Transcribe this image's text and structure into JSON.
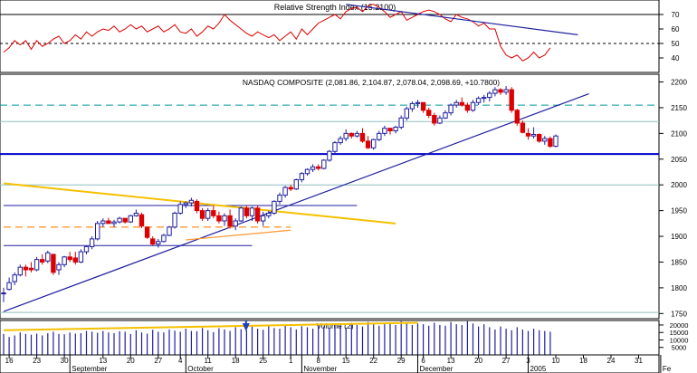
{
  "chart_data": [
    {
      "panel": "rsi",
      "type": "line",
      "title": "Relative Strength Index (15.2100)",
      "y_ticks": [
        40,
        50,
        60,
        70
      ],
      "ylim": [
        30,
        80
      ],
      "grid": false,
      "colors": {
        "rsi": "#dd0000",
        "overbought_line": "#000000",
        "midline": "#000000",
        "trendline": "#1f1f9f"
      },
      "overbought": 70,
      "midline": 50,
      "series": [
        {
          "values": [
            44,
            47,
            52,
            49,
            52,
            46,
            52,
            48,
            50,
            53,
            55,
            50,
            52,
            56,
            53,
            58,
            55,
            58,
            60,
            59,
            62,
            58,
            60,
            63,
            60,
            62,
            58,
            60,
            62,
            58,
            60,
            63,
            58,
            57,
            60,
            55,
            58,
            62,
            60,
            64,
            70,
            66,
            63,
            60,
            57,
            55,
            58,
            56,
            54,
            56,
            52,
            55,
            58,
            53,
            60,
            56,
            60,
            64,
            66,
            68,
            70,
            67,
            72,
            74,
            75,
            72,
            76,
            77,
            75,
            72,
            68,
            70,
            72,
            66,
            68,
            70,
            72,
            73,
            72,
            70,
            67,
            65,
            70,
            68,
            67,
            65,
            62,
            64,
            60,
            60,
            48,
            42,
            40,
            42,
            38,
            40,
            44,
            40,
            42,
            47
          ]
        }
      ],
      "trendline": {
        "from": {
          "index": 62,
          "value": 77
        },
        "to": {
          "index": 104,
          "value": 56
        }
      }
    },
    {
      "panel": "price",
      "type": "candlestick",
      "title": "NASDAQ COMPOSITE (2,081.86, 2,104.87, 2,078.04, 2,098.69, +10.7800)",
      "y_ticks": [
        1750,
        1800,
        1850,
        1900,
        1950,
        2000,
        2050,
        2100,
        2150,
        2200
      ],
      "ylim": [
        1740,
        2215
      ],
      "grid": false,
      "colors": {
        "up": "#1f1f9f",
        "down": "#dd0000",
        "support": "#0000cc",
        "resistance": "#009999",
        "yellow_trendline": "#f5c000",
        "orange_lines": "#ff9933",
        "blue_trendline": "#1f1f9f",
        "gridline": "#8fbfbf"
      },
      "horizontal_lines": [
        {
          "value": 2060,
          "style": "solid-thick"
        },
        {
          "value": 2155,
          "style": "dashed"
        },
        {
          "value": 2123,
          "style": "solid-thin"
        },
        {
          "value": 2000,
          "style": "solid-thin"
        },
        {
          "value": 1752,
          "style": "solid-thin"
        },
        {
          "value": 1960,
          "style": "solid-thin",
          "from_index": 0,
          "to_index": 64
        },
        {
          "value": 1882,
          "style": "solid-thin",
          "from_index": 0,
          "to_index": 45
        }
      ],
      "trendlines": [
        {
          "color": "yellow",
          "from": {
            "index": 0,
            "value": 2003
          },
          "to": {
            "index": 71,
            "value": 1925
          }
        },
        {
          "color": "blue",
          "from": {
            "index": 0,
            "value": 1754
          },
          "to": {
            "index": 106,
            "value": 2177
          }
        },
        {
          "color": "orange",
          "from": {
            "index": 33,
            "value": 1893
          },
          "to": {
            "index": 52,
            "value": 1912
          }
        },
        {
          "color": "orange",
          "from": {
            "index": 0,
            "value": 1918
          },
          "to": {
            "index": 52,
            "value": 1918
          },
          "style": "dashed"
        }
      ],
      "candles": [
        [
          1790,
          1800,
          1772,
          1790
        ],
        [
          1797,
          1820,
          1795,
          1810
        ],
        [
          1812,
          1830,
          1805,
          1825
        ],
        [
          1825,
          1845,
          1822,
          1840
        ],
        [
          1840,
          1845,
          1822,
          1835
        ],
        [
          1838,
          1850,
          1830,
          1835
        ],
        [
          1835,
          1860,
          1832,
          1855
        ],
        [
          1855,
          1865,
          1845,
          1850
        ],
        [
          1852,
          1872,
          1848,
          1868
        ],
        [
          1865,
          1866,
          1825,
          1830
        ],
        [
          1835,
          1850,
          1825,
          1845
        ],
        [
          1845,
          1862,
          1840,
          1860
        ],
        [
          1860,
          1870,
          1850,
          1855
        ],
        [
          1858,
          1870,
          1845,
          1850
        ],
        [
          1850,
          1875,
          1848,
          1870
        ],
        [
          1870,
          1882,
          1865,
          1880
        ],
        [
          1880,
          1900,
          1875,
          1895
        ],
        [
          1895,
          1930,
          1892,
          1925
        ],
        [
          1925,
          1935,
          1918,
          1930
        ],
        [
          1930,
          1936,
          1925,
          1925
        ],
        [
          1925,
          1932,
          1918,
          1928
        ],
        [
          1928,
          1938,
          1925,
          1935
        ],
        [
          1935,
          1935,
          1925,
          1928
        ],
        [
          1928,
          1942,
          1926,
          1940
        ],
        [
          1940,
          1952,
          1938,
          1945
        ],
        [
          1942,
          1946,
          1916,
          1920
        ],
        [
          1918,
          1918,
          1895,
          1898
        ],
        [
          1895,
          1900,
          1882,
          1885
        ],
        [
          1885,
          1895,
          1878,
          1890
        ],
        [
          1890,
          1905,
          1888,
          1902
        ],
        [
          1902,
          1920,
          1900,
          1918
        ],
        [
          1918,
          1948,
          1915,
          1945
        ],
        [
          1945,
          1968,
          1942,
          1962
        ],
        [
          1962,
          1968,
          1955,
          1965
        ],
        [
          1965,
          1975,
          1958,
          1970
        ],
        [
          1968,
          1972,
          1945,
          1950
        ],
        [
          1950,
          1955,
          1930,
          1935
        ],
        [
          1935,
          1955,
          1930,
          1950
        ],
        [
          1950,
          1960,
          1935,
          1940
        ],
        [
          1940,
          1948,
          1925,
          1930
        ],
        [
          1930,
          1945,
          1920,
          1940
        ],
        [
          1940,
          1952,
          1915,
          1920
        ],
        [
          1920,
          1935,
          1912,
          1930
        ],
        [
          1930,
          1958,
          1928,
          1955
        ],
        [
          1955,
          1960,
          1935,
          1940
        ],
        [
          1940,
          1958,
          1930,
          1955
        ],
        [
          1955,
          1960,
          1925,
          1930
        ],
        [
          1930,
          1948,
          1920,
          1940
        ],
        [
          1940,
          1950,
          1935,
          1945
        ],
        [
          1945,
          1970,
          1942,
          1968
        ],
        [
          1968,
          1985,
          1962,
          1980
        ],
        [
          1980,
          1998,
          1975,
          1995
        ],
        [
          1995,
          2000,
          1988,
          1992
        ],
        [
          1992,
          2012,
          1990,
          2010
        ],
        [
          2010,
          2025,
          2005,
          2022
        ],
        [
          2022,
          2032,
          2018,
          2030
        ],
        [
          2030,
          2040,
          2025,
          2035
        ],
        [
          2035,
          2040,
          2028,
          2032
        ],
        [
          2032,
          2050,
          2030,
          2048
        ],
        [
          2048,
          2068,
          2045,
          2065
        ],
        [
          2065,
          2085,
          2060,
          2082
        ],
        [
          2082,
          2095,
          2078,
          2090
        ],
        [
          2090,
          2108,
          2085,
          2100
        ],
        [
          2100,
          2102,
          2090,
          2095
        ],
        [
          2095,
          2105,
          2092,
          2100
        ],
        [
          2100,
          2110,
          2082,
          2085
        ],
        [
          2085,
          2095,
          2070,
          2072
        ],
        [
          2072,
          2090,
          2068,
          2088
        ],
        [
          2088,
          2105,
          2085,
          2100
        ],
        [
          2100,
          2115,
          2095,
          2110
        ],
        [
          2110,
          2110,
          2098,
          2105
        ],
        [
          2105,
          2115,
          2100,
          2112
        ],
        [
          2112,
          2135,
          2108,
          2130
        ],
        [
          2130,
          2152,
          2125,
          2148
        ],
        [
          2148,
          2162,
          2142,
          2158
        ],
        [
          2158,
          2165,
          2150,
          2160
        ],
        [
          2160,
          2160,
          2140,
          2145
        ],
        [
          2145,
          2150,
          2130,
          2135
        ],
        [
          2135,
          2140,
          2115,
          2120
        ],
        [
          2120,
          2135,
          2118,
          2130
        ],
        [
          2130,
          2145,
          2128,
          2140
        ],
        [
          2140,
          2158,
          2135,
          2155
        ],
        [
          2155,
          2165,
          2150,
          2160
        ],
        [
          2160,
          2170,
          2152,
          2155
        ],
        [
          2155,
          2160,
          2140,
          2145
        ],
        [
          2145,
          2165,
          2142,
          2160
        ],
        [
          2160,
          2172,
          2155,
          2168
        ],
        [
          2168,
          2175,
          2160,
          2170
        ],
        [
          2170,
          2182,
          2162,
          2178
        ],
        [
          2178,
          2190,
          2172,
          2185
        ],
        [
          2185,
          2188,
          2175,
          2180
        ],
        [
          2180,
          2192,
          2175,
          2185
        ],
        [
          2185,
          2190,
          2140,
          2145
        ],
        [
          2145,
          2148,
          2115,
          2120
        ],
        [
          2120,
          2125,
          2100,
          2102
        ],
        [
          2100,
          2110,
          2088,
          2095
        ],
        [
          2095,
          2112,
          2090,
          2098
        ],
        [
          2098,
          2100,
          2082,
          2085
        ],
        [
          2085,
          2095,
          2078,
          2090
        ],
        [
          2090,
          2094,
          2072,
          2075
        ],
        [
          2075,
          2098,
          2073,
          2095
        ]
      ]
    },
    {
      "panel": "volume",
      "type": "bar",
      "title": "Volume (2)",
      "y_ticks": [
        5000,
        10000,
        15000,
        20000
      ],
      "ylim": [
        0,
        23000
      ],
      "colors": {
        "bars": "#1f1f9f",
        "overlay_line": "#f5c000"
      },
      "values": [
        14000,
        12000,
        13000,
        15000,
        14000,
        13500,
        14200,
        13000,
        14500,
        15500,
        14000,
        13800,
        15000,
        14200,
        14500,
        16000,
        15500,
        14800,
        16000,
        15000,
        14500,
        15800,
        15500,
        14000,
        16500,
        15000,
        14200,
        16800,
        15500,
        15000,
        17000,
        16200,
        15500,
        17500,
        16000,
        15800,
        18000,
        16500,
        15200,
        17800,
        17000,
        16000,
        18500,
        17200,
        16500,
        19000,
        17500,
        16800,
        19500,
        18000,
        17500,
        20000,
        18500,
        17000,
        19200,
        18500,
        17500,
        20500,
        19000,
        18000,
        21000,
        19500,
        18200,
        21500,
        20000,
        19000,
        22000,
        20500,
        19500,
        21500,
        21000,
        20000,
        22500,
        21000,
        20000,
        21000,
        20500,
        19500,
        21500,
        20000,
        19500,
        22000,
        20500,
        20000,
        22500,
        21000,
        19000,
        20500,
        18500,
        17000,
        19000,
        17500,
        16500,
        18500,
        17000,
        16000,
        17500,
        16500,
        16000,
        15500
      ],
      "overlay": {
        "from": {
          "index": 0,
          "value": 16500
        },
        "to": {
          "index": 75,
          "value": 21500
        }
      },
      "arrow_at_index": 38
    }
  ],
  "x_axis": {
    "tick_labels": [
      {
        "label": "16",
        "index": 1
      },
      {
        "label": "23",
        "index": 6
      },
      {
        "label": "30",
        "index": 11
      },
      {
        "label": "13",
        "index": 18
      },
      {
        "label": "20",
        "index": 23
      },
      {
        "label": "27",
        "index": 28
      },
      {
        "label": "4",
        "index": 32
      },
      {
        "label": "11",
        "index": 37
      },
      {
        "label": "18",
        "index": 42
      },
      {
        "label": "25",
        "index": 47
      },
      {
        "label": "1",
        "index": 52
      },
      {
        "label": "8",
        "index": 57
      },
      {
        "label": "15",
        "index": 62
      },
      {
        "label": "22",
        "index": 67
      },
      {
        "label": "29",
        "index": 72
      },
      {
        "label": "6",
        "index": 76
      },
      {
        "label": "13",
        "index": 81
      },
      {
        "label": "20",
        "index": 86
      },
      {
        "label": "27",
        "index": 91
      },
      {
        "label": "3",
        "index": 95
      },
      {
        "label": "10",
        "index": 100
      },
      {
        "label": "18",
        "index": 105
      },
      {
        "label": "24",
        "index": 110
      },
      {
        "label": "31",
        "index": 115
      }
    ],
    "period_labels": [
      {
        "label": "September",
        "index": 12
      },
      {
        "label": "October",
        "index": 33
      },
      {
        "label": "November",
        "index": 54
      },
      {
        "label": "December",
        "index": 75
      },
      {
        "label": "2005",
        "index": 95
      },
      {
        "label": "Fe",
        "index": 119
      }
    ]
  }
}
